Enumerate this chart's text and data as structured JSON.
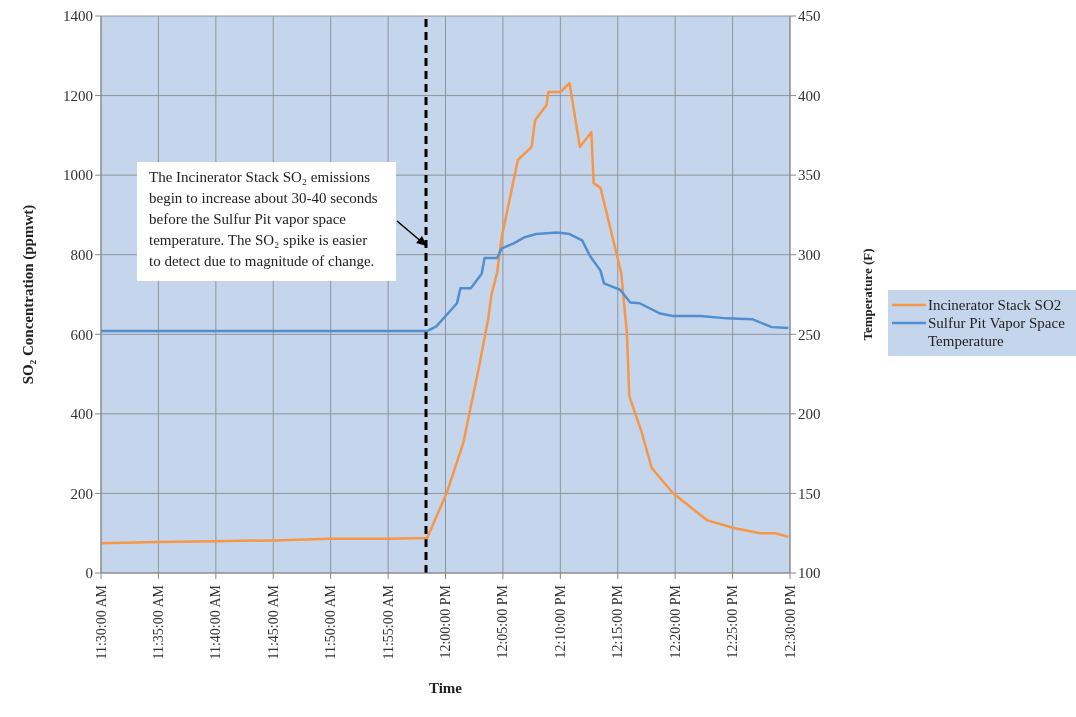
{
  "chart_data": {
    "type": "line",
    "xlabel": "Time",
    "ylabel": "SO₂ Concentration (ppmwt)",
    "y2label": "Temperature (F)",
    "xlim": [
      11.5,
      12.5
    ],
    "xticks": [
      {
        "value": 11.5,
        "label": "11:30:00 AM"
      },
      {
        "value": 11.5833,
        "label": "11:35:00 AM"
      },
      {
        "value": 11.6667,
        "label": "11:40:00 AM"
      },
      {
        "value": 11.75,
        "label": "11:45:00 AM"
      },
      {
        "value": 11.8333,
        "label": "11:50:00 AM"
      },
      {
        "value": 11.9167,
        "label": "11:55:00 AM"
      },
      {
        "value": 12.0,
        "label": "12:00:00 PM"
      },
      {
        "value": 12.0833,
        "label": "12:05:00 PM"
      },
      {
        "value": 12.1667,
        "label": "12:10:00 PM"
      },
      {
        "value": 12.25,
        "label": "12:15:00 PM"
      },
      {
        "value": 12.3333,
        "label": "12:20:00 PM"
      },
      {
        "value": 12.4167,
        "label": "12:25:00 PM"
      },
      {
        "value": 12.5,
        "label": "12:30:00 PM"
      }
    ],
    "ylim": [
      0,
      1400
    ],
    "yticks": [
      0,
      200,
      400,
      600,
      800,
      1000,
      1200,
      1400
    ],
    "y2lim": [
      100,
      450
    ],
    "y2ticks": [
      100,
      150,
      200,
      250,
      300,
      350,
      400,
      450
    ],
    "grid": true,
    "legend": "right",
    "marker": "none",
    "line_style": "solid",
    "series": [
      {
        "name": "Incinerator Stack SO2",
        "color": "#f79646",
        "x": [
          11.5,
          11.5833,
          11.6667,
          11.75,
          11.8333,
          11.9167,
          11.9733,
          12.0017,
          12.0258,
          12.0483,
          12.0617,
          12.0667,
          12.075,
          12.0817,
          12.105,
          12.125,
          12.13,
          12.1467,
          12.1492,
          12.1667,
          12.18,
          12.195,
          12.2117,
          12.215,
          12.225,
          12.255,
          12.2633,
          12.2667,
          12.285,
          12.2993,
          12.33,
          12.3792,
          12.4183,
          12.4567,
          12.4783,
          12.4975
        ],
        "values": [
          75,
          78,
          80,
          82,
          86,
          86,
          88,
          201,
          327,
          515,
          636,
          699,
          756,
          845,
          1038,
          1071,
          1138,
          1176,
          1209,
          1209,
          1231,
          1071,
          1108,
          980,
          968,
          754,
          603,
          445,
          352,
          264,
          201,
          133,
          113,
          100,
          100,
          91
        ]
      },
      {
        "name": "Sulfur Pit Vapor Space Temperature",
        "color": "#4f8fd0",
        "axis": "y2",
        "x": [
          11.5,
          11.9733,
          11.9867,
          12.0167,
          12.0217,
          12.0367,
          12.0525,
          12.0567,
          12.075,
          12.0817,
          12.0983,
          12.115,
          12.1317,
          12.1617,
          12.18,
          12.1983,
          12.21,
          12.225,
          12.23,
          12.2533,
          12.2683,
          12.2817,
          12.3117,
          12.33,
          12.37,
          12.4083,
          12.445,
          12.4733,
          12.4975
        ],
        "values": [
          252,
          252,
          255,
          269.5,
          279,
          279,
          288,
          298,
          298,
          304,
          307,
          311,
          313,
          314,
          313,
          309,
          299,
          290,
          282,
          278,
          270,
          269.5,
          263,
          261.5,
          261.5,
          260,
          259.5,
          254.5,
          254
        ]
      }
    ],
    "ref_lines": [
      {
        "axis": "x",
        "value": 11.9717,
        "color": "#000000",
        "line_style": "dashed"
      }
    ],
    "annotations": [
      {
        "text": "The Incinerator Stack SO₂ emissions begin to increase about 30-40 seconds before the Sulfur Pit vapor space temperature. The SO₂ spike is easier to detect due to magnitude of change.",
        "x": 11.9717,
        "y": 825
      }
    ]
  }
}
